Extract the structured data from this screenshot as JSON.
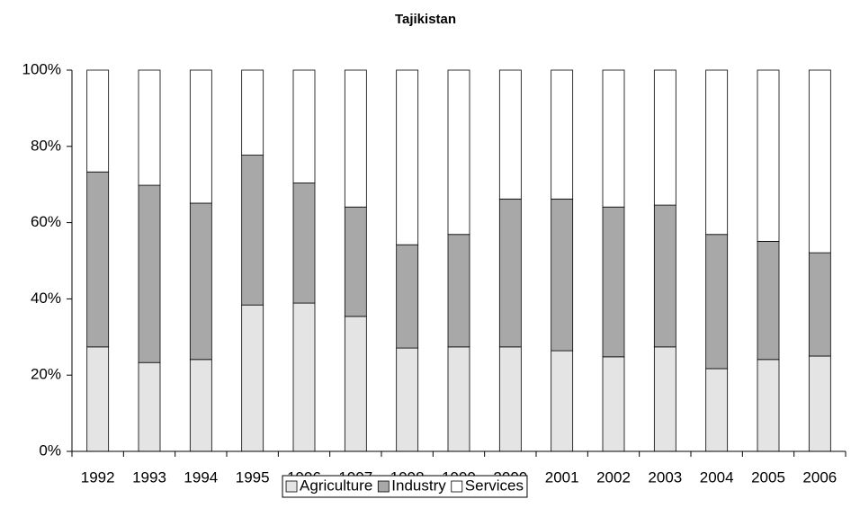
{
  "chart_data": {
    "type": "stacked_bar",
    "title": "Tajikistan",
    "categories": [
      "1992",
      "1993",
      "1994",
      "1995",
      "1996",
      "1997",
      "1998",
      "1999",
      "2000",
      "2001",
      "2002",
      "2003",
      "2004",
      "2005",
      "2006"
    ],
    "series": [
      {
        "name": "Agriculture",
        "color": "#e4e4e4",
        "values": [
          27.4,
          23.3,
          24.1,
          38.4,
          38.9,
          35.4,
          27.1,
          27.4,
          27.4,
          26.4,
          24.8,
          27.4,
          21.7,
          24.1,
          25.0
        ]
      },
      {
        "name": "Industry",
        "color": "#a8a8a8",
        "values": [
          45.9,
          46.5,
          41.0,
          39.3,
          31.5,
          28.7,
          27.1,
          29.5,
          38.8,
          39.8,
          39.3,
          37.2,
          35.2,
          31.0,
          27.1
        ]
      },
      {
        "name": "Services",
        "color": "#ffffff",
        "values": [
          26.7,
          30.2,
          34.9,
          22.3,
          29.6,
          35.9,
          45.8,
          43.1,
          33.8,
          33.8,
          35.9,
          35.4,
          43.1,
          44.9,
          47.9
        ]
      }
    ],
    "ylim": [
      0,
      100
    ],
    "yticks": [
      {
        "value": 0,
        "label": "0%"
      },
      {
        "value": 20,
        "label": "20%"
      },
      {
        "value": 40,
        "label": "40%"
      },
      {
        "value": 60,
        "label": "60%"
      },
      {
        "value": 80,
        "label": "80%"
      },
      {
        "value": 100,
        "label": "100%"
      }
    ],
    "legend": "bottom"
  }
}
